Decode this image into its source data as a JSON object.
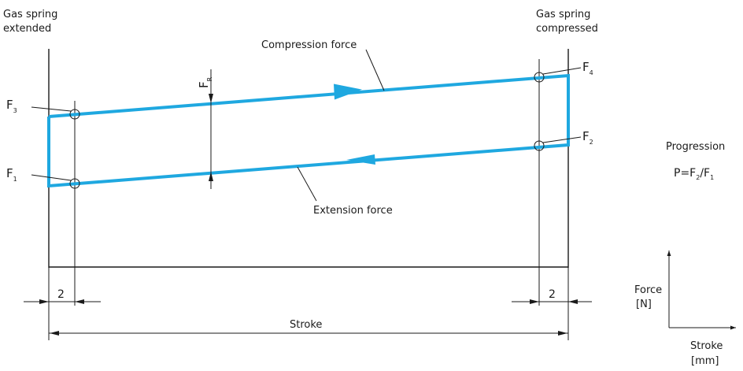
{
  "labels": {
    "left_top_line1": "Gas spring",
    "left_top_line2": "extended",
    "right_top_line1": "Gas spring",
    "right_top_line2": "compressed",
    "compression_force": "Compression force",
    "extension_force": "Extension force",
    "stroke": "Stroke",
    "dim_left": "2",
    "dim_right": "2"
  },
  "forces": {
    "f1_main": "F",
    "f1_sub": "1",
    "f2_main": "F",
    "f2_sub": "2",
    "f3_main": "F",
    "f3_sub": "3",
    "f4_main": "F",
    "f4_sub": "4",
    "fr_main": "F",
    "fr_sub": "R"
  },
  "progression": {
    "title": "Progression",
    "formula_p": "P=F",
    "formula_sub1": "2",
    "formula_slash": "/F",
    "formula_sub2": "1"
  },
  "axis_legend": {
    "y_line1": "Force",
    "y_line2": "[N]",
    "x_line1": "Stroke",
    "x_line2": "[mm]"
  },
  "colors": {
    "curve": "#1fa8e0",
    "ink": "#1a1a1a"
  }
}
